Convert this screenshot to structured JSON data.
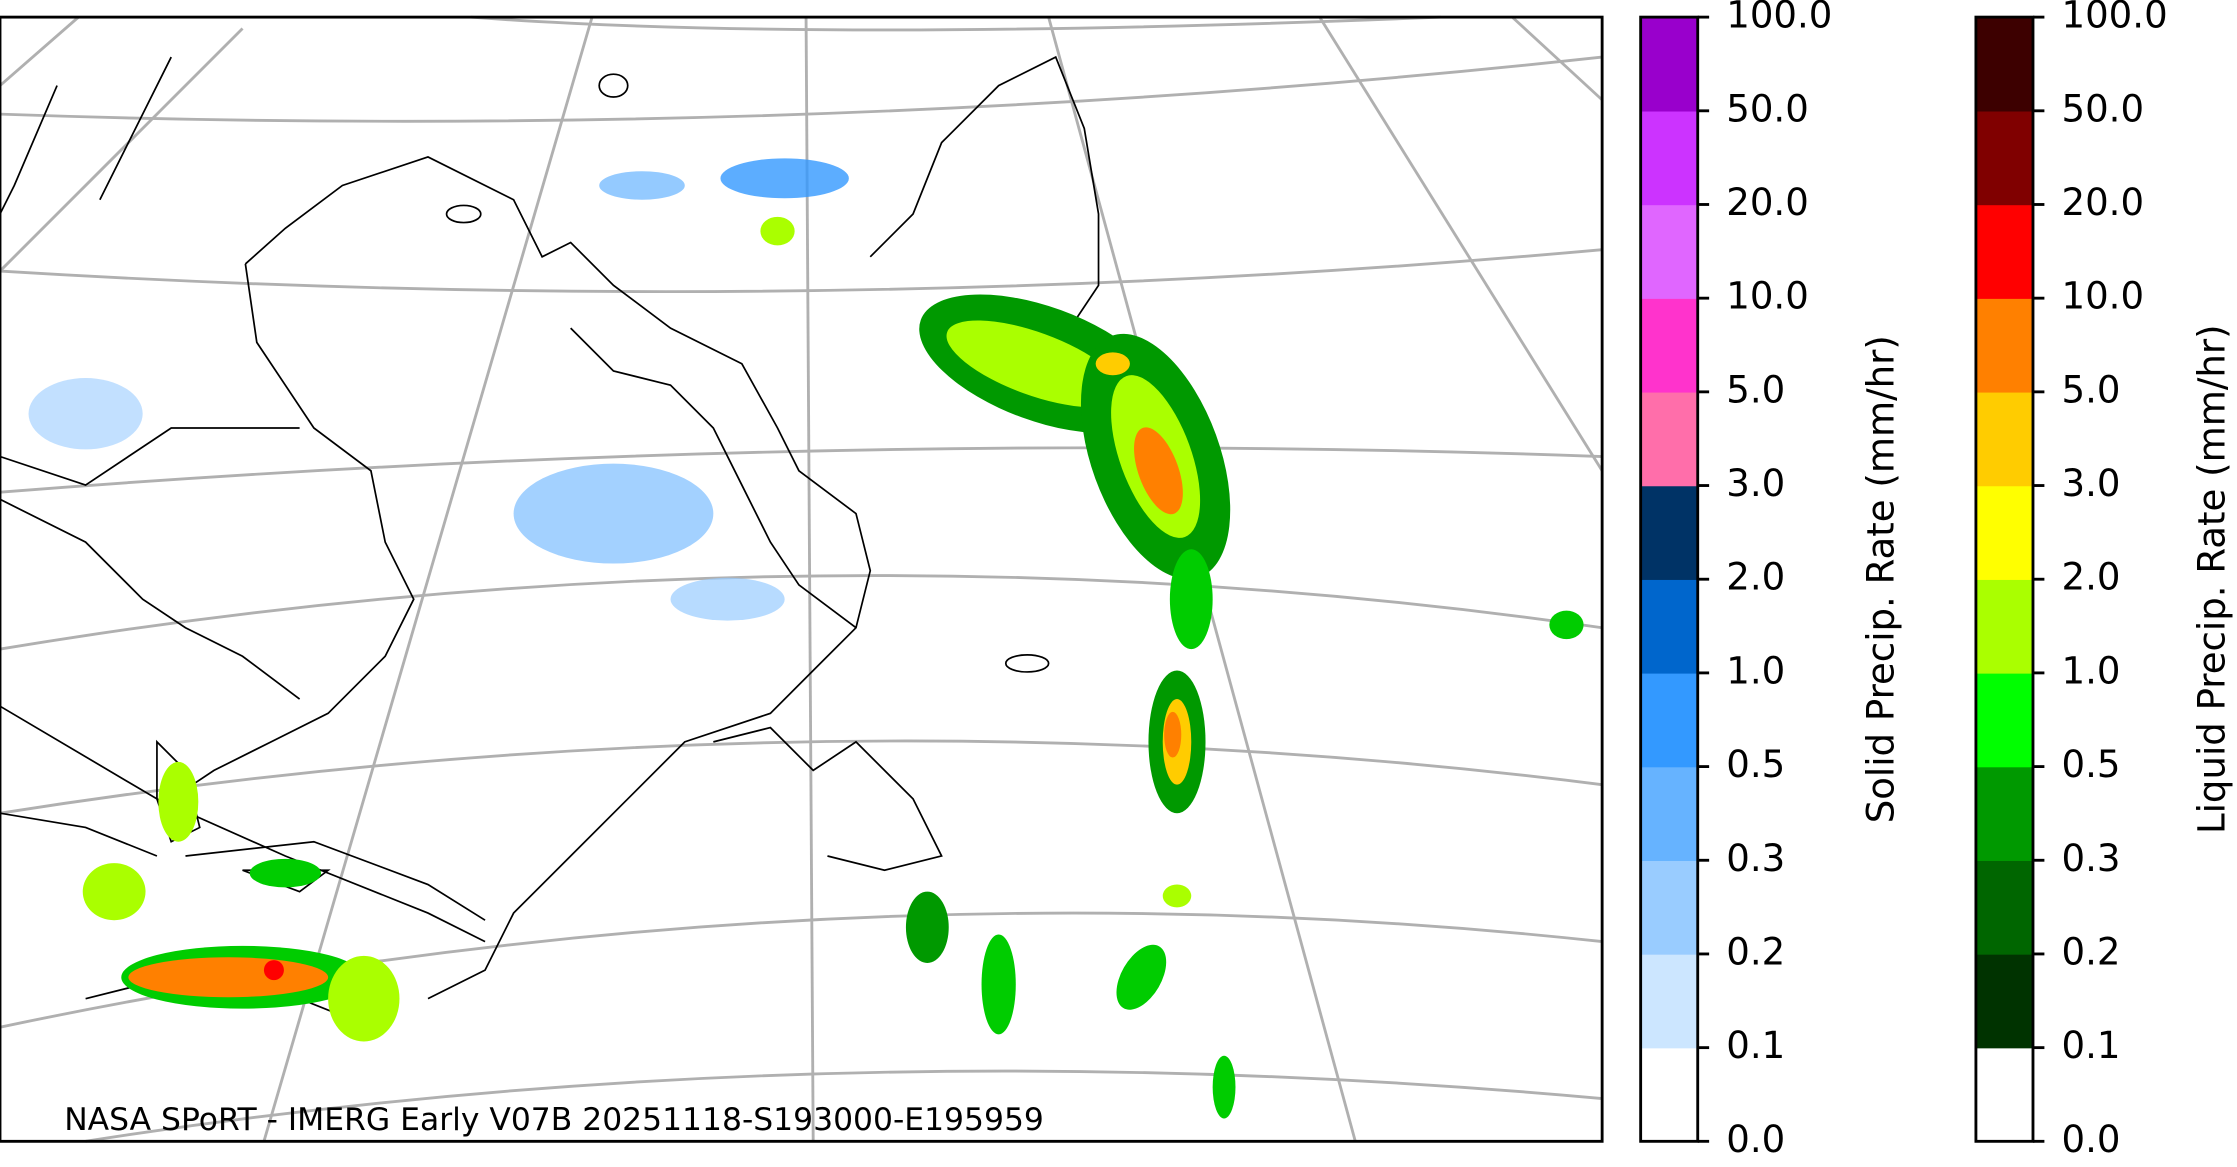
{
  "credit": "NASA SPoRT - IMERG Early V07B 20251118-S193000-E195959",
  "colorbars": [
    {
      "label": "Solid Precip. Rate (mm/hr)",
      "ticks": [
        "0.0",
        "0.1",
        "0.2",
        "0.3",
        "0.5",
        "1.0",
        "2.0",
        "3.0",
        "5.0",
        "10.0",
        "20.0",
        "50.0",
        "100.0"
      ],
      "colors": [
        "#ffffff",
        "#cce6ff",
        "#99ccff",
        "#66b3ff",
        "#3399ff",
        "#0066cc",
        "#003366",
        "#ff6eaa",
        "#ff33cc",
        "#e066ff",
        "#cc33ff",
        "#9900cc"
      ]
    },
    {
      "label": "Liquid Precip. Rate (mm/hr)",
      "ticks": [
        "0.0",
        "0.1",
        "0.2",
        "0.3",
        "0.5",
        "1.0",
        "2.0",
        "3.0",
        "5.0",
        "10.0",
        "20.0",
        "50.0",
        "100.0"
      ],
      "colors": [
        "#ffffff",
        "#003300",
        "#006600",
        "#009900",
        "#00ff00",
        "#aaff00",
        "#ffff00",
        "#ffcc00",
        "#ff8000",
        "#ff0000",
        "#800000",
        "#3d0000"
      ]
    }
  ]
}
